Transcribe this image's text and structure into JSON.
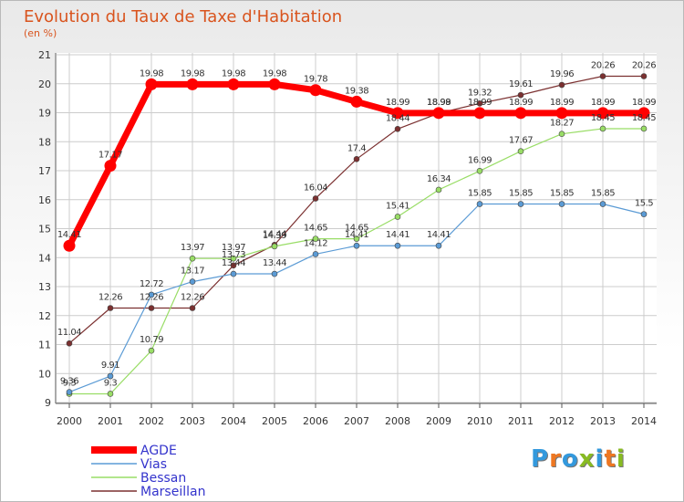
{
  "chart_data": {
    "type": "line",
    "title": "Evolution du Taux de Taxe d'Habitation",
    "subtitle": "(en %)",
    "x": [
      "2000",
      "2001",
      "2002",
      "2003",
      "2004",
      "2005",
      "2006",
      "2007",
      "2008",
      "2009",
      "2010",
      "2011",
      "2012",
      "2013",
      "2014"
    ],
    "ylim": [
      9,
      21
    ],
    "yticks": [
      "9",
      "10",
      "11",
      "12",
      "13",
      "14",
      "15",
      "16",
      "17",
      "18",
      "19",
      "20",
      "21"
    ],
    "grid": true,
    "legend_position": "bottom-left",
    "series": [
      {
        "name": "AGDE",
        "color": "#ff0000",
        "values": [
          14.41,
          17.17,
          19.98,
          19.98,
          19.98,
          19.98,
          19.78,
          19.38,
          18.99,
          18.99,
          18.99,
          18.99,
          18.99,
          18.99,
          18.99
        ],
        "labels": [
          "14.41",
          "17.17",
          "19.98",
          "19.98",
          "19.98",
          "19.98",
          "19.78",
          "19.38",
          "18.99",
          "18.99",
          "18.99",
          "18.99",
          "18.99",
          "18.99",
          "18.99"
        ]
      },
      {
        "name": "Vias",
        "color": "#5b9bd5",
        "values": [
          9.36,
          9.91,
          12.72,
          13.17,
          13.44,
          13.44,
          14.12,
          14.41,
          14.41,
          14.41,
          15.85,
          15.85,
          15.85,
          15.85,
          15.5
        ],
        "labels": [
          "9.36",
          "9.91",
          "12.72",
          "13.17",
          "13.44",
          "13.44",
          "14.12",
          "14.41",
          "14.41",
          "14.41",
          "15.85",
          "15.85",
          "15.85",
          "15.85",
          "15.5"
        ]
      },
      {
        "name": "Bessan",
        "color": "#99dd66",
        "values": [
          9.3,
          9.3,
          10.79,
          13.97,
          13.97,
          14.39,
          14.65,
          14.65,
          15.41,
          16.34,
          16.99,
          17.67,
          18.27,
          18.45,
          18.45
        ],
        "labels": [
          "9.3",
          "9.3",
          "10.79",
          "13.97",
          "13.97",
          "14.39",
          "14.65",
          "14.65",
          "15.41",
          "16.34",
          "16.99",
          "17.67",
          "18.27",
          "18.45",
          "18.45"
        ]
      },
      {
        "name": "Marseillan",
        "color": "#7b3030",
        "values": [
          11.04,
          12.26,
          12.26,
          12.26,
          13.73,
          14.44,
          16.04,
          17.4,
          18.44,
          18.98,
          19.32,
          19.61,
          19.96,
          20.26,
          20.26
        ],
        "labels": [
          "11.04",
          "12.26",
          "12.26",
          "12.26",
          "13.73",
          "14.44",
          "16.04",
          "17.4",
          "18.44",
          "18.98",
          "19.32",
          "19.61",
          "19.96",
          "20.26",
          "20.26"
        ]
      }
    ]
  },
  "branding": {
    "logo_letters": [
      "P",
      "r",
      "o",
      "x",
      "i",
      "t",
      "i"
    ],
    "logo_colors": [
      "#3399dd",
      "#ee7722",
      "#3399dd",
      "#88bb22",
      "#3399dd",
      "#ee7722",
      "#88bb22"
    ]
  }
}
